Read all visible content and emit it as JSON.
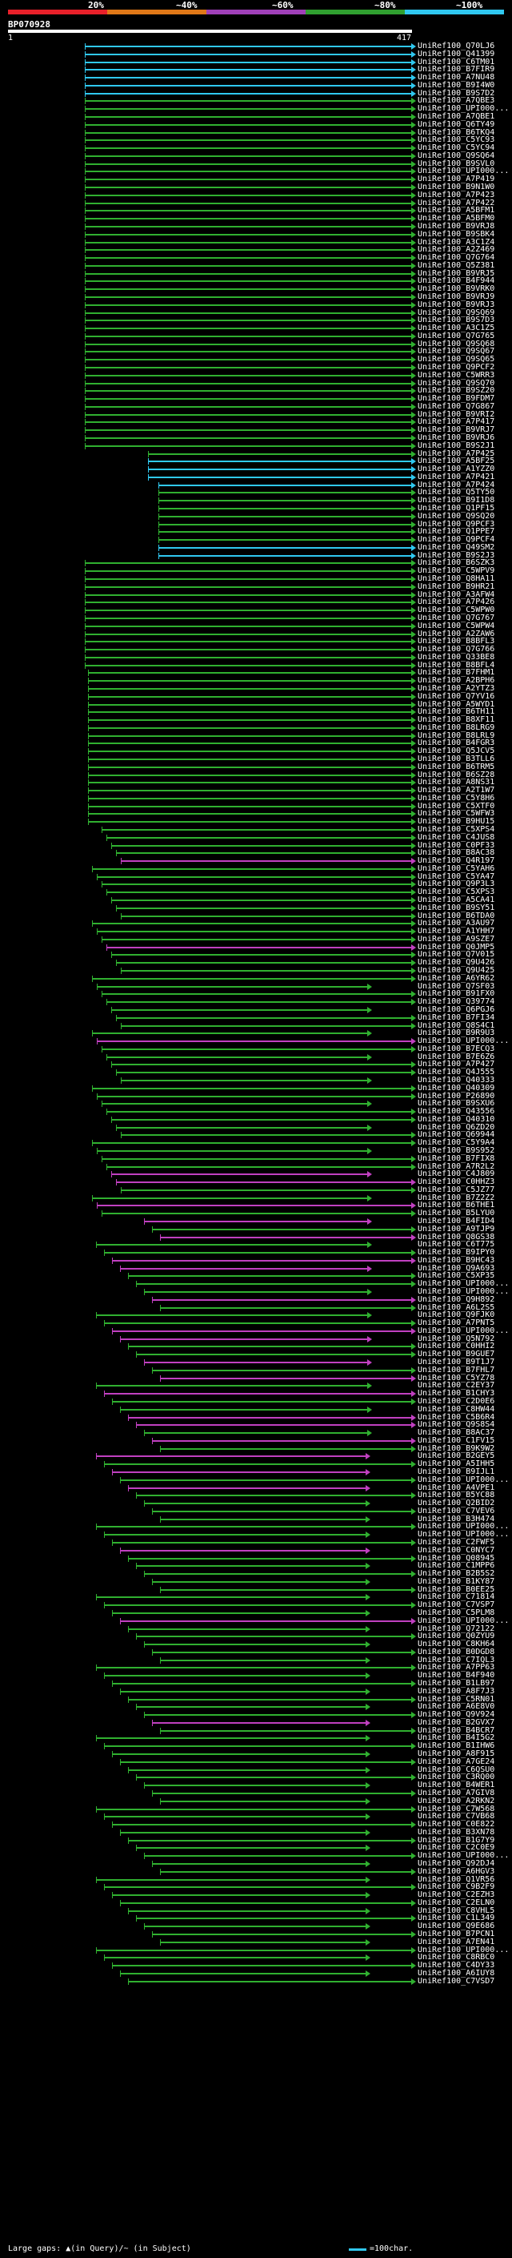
{
  "scale": {
    "labels": [
      "20%",
      "~40%",
      "~60%",
      "~80%",
      "~100%"
    ],
    "colors": [
      "#e8202a",
      "#e07818",
      "#a040b8",
      "#30a030",
      "#30c8f0"
    ]
  },
  "query": {
    "id": "BP070928",
    "start": "1",
    "end": "417"
  },
  "footer": {
    "gaps_text": "Large gaps: ▲(in Query)/~ (in Subject)",
    "legend_text": "=100char."
  },
  "hit_ids": [
    "UniRef100_Q70LJ6",
    "UniRef100_Q41399",
    "UniRef100_C6TM01",
    "UniRef100_B7FIR9",
    "UniRef100_A7NU48",
    "UniRef100_B9I4W0",
    "UniRef100_B9S7D2",
    "UniRef100_A7QBE3",
    "UniRef100_UPI000...",
    "UniRef100_A7QBE1",
    "UniRef100_Q6TY49",
    "UniRef100_B6TKQ4",
    "UniRef100_C5YC93",
    "UniRef100_C5YC94",
    "UniRef100_Q9SQ64",
    "UniRef100_B9SVL0",
    "UniRef100_UPI000...",
    "UniRef100_A7P419",
    "UniRef100_B9N1W0",
    "UniRef100_A7P423",
    "UniRef100_A7P422",
    "UniRef100_A5BFM1",
    "UniRef100_A5BFM0",
    "UniRef100_B9VRJ8",
    "UniRef100_B9SBK4",
    "UniRef100_A3C1Z4",
    "UniRef100_A2Z469",
    "UniRef100_Q7G764",
    "UniRef100_Q5Z381",
    "UniRef100_B9VRJ5",
    "UniRef100_B4F944",
    "UniRef100_B9VRK0",
    "UniRef100_B9VRJ9",
    "UniRef100_B9VRJ3",
    "UniRef100_Q9SQ69",
    "UniRef100_B9S7D3",
    "UniRef100_A3C1Z5",
    "UniRef100_Q7G765",
    "UniRef100_Q9SQ68",
    "UniRef100_Q9SQ67",
    "UniRef100_Q9SQ65",
    "UniRef100_Q9PCF2",
    "UniRef100_C5WRR3",
    "UniRef100_Q9SQ70",
    "UniRef100_B9SZ20",
    "UniRef100_B9FDM7",
    "UniRef100_Q7G867",
    "UniRef100_B9VRI2",
    "UniRef100_A7P417",
    "UniRef100_B9VRJ7",
    "UniRef100_B9VRJ6",
    "UniRef100_B9S2J1",
    "UniRef100_A7P425",
    "UniRef100_A5BF25",
    "UniRef100_A1YZZ0",
    "UniRef100_A7P421",
    "UniRef100_A7P424",
    "UniRef100_Q5TY50",
    "UniRef100_B9I1D8",
    "UniRef100_Q1PF15",
    "UniRef100_Q9SQ20",
    "UniRef100_Q9PCF3",
    "UniRef100_Q1PPE7",
    "UniRef100_Q9PCF4",
    "UniRef100_Q49SM2",
    "UniRef100_B9S2J3",
    "UniRef100_B6SZK3",
    "UniRef100_C5WPV9",
    "UniRef100_Q8HA11",
    "UniRef100_B9HR21",
    "UniRef100_A3AFW4",
    "UniRef100_A7P426",
    "UniRef100_C5WPW0",
    "UniRef100_Q7G767",
    "UniRef100_C5WPW4",
    "UniRef100_A2ZAW6",
    "UniRef100_B8BFL3",
    "UniRef100_Q7G766",
    "UniRef100_Q33BE8",
    "UniRef100_B8BFL4",
    "UniRef100_B7FHM1",
    "UniRef100_A2BPH6",
    "UniRef100_A2YTZ3",
    "UniRef100_Q7YV16",
    "UniRef100_A5WYD1",
    "UniRef100_B6TH11",
    "UniRef100_B8XF11",
    "UniRef100_B8LRG9",
    "UniRef100_B8LRL9",
    "UniRef100_B4FGR3",
    "UniRef100_Q5JCV5",
    "UniRef100_B3TLL6",
    "UniRef100_B6TRM5",
    "UniRef100_B6SZ28",
    "UniRef100_A8NS31",
    "UniRef100_A2T1W7",
    "UniRef100_C5Y8H6",
    "UniRef100_C5XTF0",
    "UniRef100_C5WFW3",
    "UniRef100_B9HU15",
    "UniRef100_C5XPS4",
    "UniRef100_C4JUS8",
    "UniRef100_C0PF33",
    "UniRef100_B8AC38",
    "UniRef100_Q4R197",
    "UniRef100_C5YAH6",
    "UniRef100_C5YA47",
    "UniRef100_Q9P3L3",
    "UniRef100_C5XPS3",
    "UniRef100_A5CA41",
    "UniRef100_B9SY51",
    "UniRef100_B6TDA0",
    "UniRef100_A3AU97",
    "UniRef100_A1YHH7",
    "UniRef100_A9SZE7",
    "UniRef100_Q0JMP5",
    "UniRef100_Q7V015",
    "UniRef100_Q9U426",
    "UniRef100_Q9U425",
    "UniRef100_A6YR62",
    "UniRef100_Q7SF03",
    "UniRef100_B91FX0",
    "UniRef100_Q39774",
    "UniRef100_Q6PGJ6",
    "UniRef100_B7FI34",
    "UniRef100_Q8S4C1",
    "UniRef100_B9R9U3",
    "UniRef100_UPI000...",
    "UniRef100_B7ECQ3",
    "UniRef100_B7E6Z6",
    "UniRef100_A7P427",
    "UniRef100_Q4J555",
    "UniRef100_Q40333",
    "UniRef100_Q40309",
    "UniRef100_P26890",
    "UniRef100_B9SXU6",
    "UniRef100_Q43556",
    "UniRef100_Q40310",
    "UniRef100_Q6ZD20",
    "UniRef100_Q69944",
    "UniRef100_C5Y9A4",
    "UniRef100_B9S952",
    "UniRef100_B7FIX8",
    "UniRef100_A7R2L2",
    "UniRef100_C4J809",
    "UniRef100_C0HHZ3",
    "UniRef100_C5JZ77",
    "UniRef100_B7Z2Z2",
    "UniRef100_B6THE1",
    "UniRef100_B5LYU0",
    "UniRef100_B4FID4",
    "UniRef100_A9TJP9",
    "UniRef100_Q8GS38",
    "UniRef100_C6T775",
    "UniRef100_B9IPY0",
    "UniRef100_B9HC43",
    "UniRef100_Q9A693",
    "UniRef100_C5XP35",
    "UniRef100_UPI000...",
    "UniRef100_UPI000...",
    "UniRef100_Q9H892",
    "UniRef100_A6L2S5",
    "UniRef100_Q9FJK0",
    "UniRef100_A7PNT5",
    "UniRef100_UPI000...",
    "UniRef100_Q5N792",
    "UniRef100_C0HHI2",
    "UniRef100_B9GUE7",
    "UniRef100_B9T1J7",
    "UniRef100_B7FHL7",
    "UniRef100_C5YZ78",
    "UniRef100_C2EY37",
    "UniRef100_B1CHY3",
    "UniRef100_C2D0E6",
    "UniRef100_C8HW44",
    "UniRef100_C5B6R4",
    "UniRef100_Q9S8S4",
    "UniRef100_B8AC37",
    "UniRef100_C1FV15",
    "UniRef100_B9K9W2",
    "UniRef100_B2GEY5",
    "UniRef100_A5IHH5",
    "UniRef100_B9IJL1",
    "UniRef100_UPI000...",
    "UniRef100_A4VPE1",
    "UniRef100_B5YC88",
    "UniRef100_Q2BID2",
    "UniRef100_C7VEV6",
    "UniRef100_B3H474",
    "UniRef100_UPI000...",
    "UniRef100_UPI000...",
    "UniRef100_C2FWF5",
    "UniRef100_C0NYC7",
    "UniRef100_Q08945",
    "UniRef100_C1MPP6",
    "UniRef100_B2B5S2",
    "UniRef100_B1KY87",
    "UniRef100_B0EE25",
    "UniRef100_C71814",
    "UniRef100_C7VSP7",
    "UniRef100_C5PLM8",
    "UniRef100_UPI000...",
    "UniRef100_Q72122",
    "UniRef100_Q0ZYU9",
    "UniRef100_C8KH64",
    "UniRef100_B0DGD8",
    "UniRef100_C7IQL3",
    "UniRef100_A7PP63",
    "UniRef100_B4F940",
    "UniRef100_B1LB97",
    "UniRef100_A8F7J3",
    "UniRef100_C5RN01",
    "UniRef100_A6E8V0",
    "UniRef100_Q9V924",
    "UniRef100_B2GVX7",
    "UniRef100_B4BCR7",
    "UniRef100_B4I5G2",
    "UniRef100_B1IHW6",
    "UniRef100_A8F915",
    "UniRef100_A7GE24",
    "UniRef100_C6QSU0",
    "UniRef100_C3RQ00",
    "UniRef100_B4WER1",
    "UniRef100_A7GIV8",
    "UniRef100_A2RKN2",
    "UniRef100_C7W568",
    "UniRef100_C7VB68",
    "UniRef100_C0E822",
    "UniRef100_B3XN78",
    "UniRef100_B1G7Y9",
    "UniRef100_C2C0E9",
    "UniRef100_UPI000...",
    "UniRef100_Q92DJ4",
    "UniRef100_A6HGV3",
    "UniRef100_Q1VR56",
    "UniRef100_C9B2F9",
    "UniRef100_C2EZH3",
    "UniRef100_C2ELN0",
    "UniRef100_C8VHL5",
    "UniRef100_C1L349",
    "UniRef100_Q9E686",
    "UniRef100_B7PCN1",
    "UniRef100_A7EN41",
    "UniRef100_UPI000...",
    "UniRef100_C8RBC0",
    "UniRef100_C4DY33",
    "UniRef100_A6IUY8",
    "UniRef100_C7VSD7"
  ]
}
